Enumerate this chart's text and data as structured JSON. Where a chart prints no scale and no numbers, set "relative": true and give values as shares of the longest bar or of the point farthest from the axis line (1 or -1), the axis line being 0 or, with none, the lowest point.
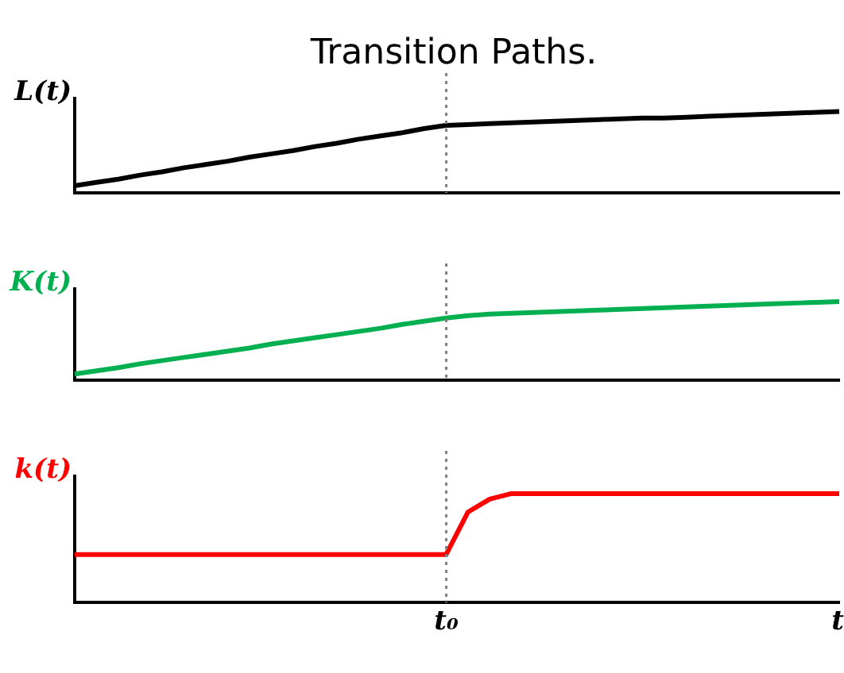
{
  "chart_data": [
    {
      "type": "line",
      "title": "Transition Paths.",
      "ylabel": "L(t)",
      "relative": true,
      "marker": "none",
      "legend": false,
      "grid": false,
      "categories": [
        null,
        null,
        null,
        null,
        null,
        null,
        null,
        null,
        null,
        null,
        null,
        null,
        null,
        null,
        null,
        null,
        null,
        null,
        null,
        null,
        null,
        null,
        null,
        null,
        null,
        null,
        null,
        null,
        null,
        null,
        null,
        null,
        null,
        null,
        null,
        null
      ],
      "series": [
        {
          "color": "#000000",
          "values": [
            0.09,
            0.13,
            0.17,
            0.22,
            0.26,
            0.31,
            0.35,
            0.39,
            0.44,
            0.48,
            0.52,
            0.57,
            0.61,
            0.66,
            0.7,
            0.74,
            0.79,
            0.83,
            0.84,
            0.85,
            0.86,
            0.87,
            0.88,
            0.89,
            0.9,
            0.91,
            0.92,
            0.92,
            0.93,
            0.94,
            0.95,
            0.96,
            0.97,
            0.98,
            0.99,
            1
          ]
        }
      ]
    },
    {
      "type": "line",
      "ylabel": "K(t)",
      "relative": true,
      "marker": "none",
      "legend": false,
      "grid": false,
      "categories": [
        null,
        null,
        null,
        null,
        null,
        null,
        null,
        null,
        null,
        null,
        null,
        null,
        null,
        null,
        null,
        null,
        null,
        null,
        null,
        null,
        null,
        null,
        null,
        null,
        null,
        null,
        null,
        null,
        null,
        null,
        null,
        null,
        null,
        null,
        null,
        null
      ],
      "series": [
        {
          "color": "#00b050",
          "values": [
            0.08,
            0.12,
            0.16,
            0.21,
            0.25,
            0.29,
            0.33,
            0.37,
            0.41,
            0.46,
            0.5,
            0.54,
            0.58,
            0.62,
            0.66,
            0.71,
            0.75,
            0.79,
            0.82,
            0.84,
            0.85,
            0.86,
            0.87,
            0.88,
            0.89,
            0.9,
            0.91,
            0.92,
            0.93,
            0.94,
            0.95,
            0.96,
            0.97,
            0.98,
            0.99,
            1
          ]
        }
      ]
    },
    {
      "type": "line",
      "ylabel": "k(t)",
      "xlabel": "t",
      "relative": true,
      "marker": "none",
      "legend": false,
      "grid": false,
      "categories": [
        null,
        null,
        null,
        null,
        null,
        null,
        null,
        null,
        null,
        null,
        null,
        null,
        null,
        null,
        null,
        null,
        null,
        null,
        null,
        null,
        null,
        null,
        null,
        null,
        null,
        null,
        null,
        null,
        null,
        null,
        null,
        null,
        null,
        null,
        null,
        null
      ],
      "series": [
        {
          "color": "#ff0000",
          "values": [
            0.44,
            0.44,
            0.44,
            0.44,
            0.44,
            0.44,
            0.44,
            0.44,
            0.44,
            0.44,
            0.44,
            0.44,
            0.44,
            0.44,
            0.44,
            0.44,
            0.44,
            0.44,
            0.83,
            0.95,
            1,
            1,
            1,
            1,
            1,
            1,
            1,
            1,
            1,
            1,
            1,
            1,
            1,
            1,
            1,
            1
          ]
        }
      ],
      "annotations": [
        "t₀"
      ]
    }
  ]
}
